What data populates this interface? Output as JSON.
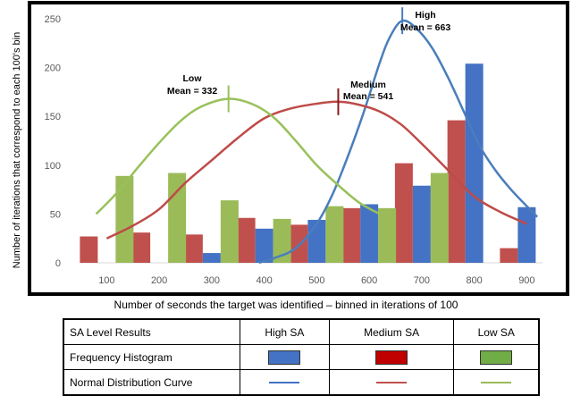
{
  "chart_data": {
    "type": "bar",
    "ylabel": "Number of iterations that correspond to each 100's bin",
    "xlabel": "Number of seconds the target was identified – binned in iterations of 100",
    "ylim": [
      0,
      250
    ],
    "xlim": [
      50,
      930
    ],
    "yticks": [
      0,
      50,
      100,
      150,
      200,
      250
    ],
    "categories": [
      "100",
      "200",
      "300",
      "400",
      "500",
      "600",
      "700",
      "800",
      "900"
    ],
    "series": [
      {
        "name": "High SA",
        "color": "#4472c4",
        "mean": 663,
        "mean_label": "Mean = 663",
        "label": "High",
        "values": [
          0,
          0,
          10,
          35,
          44,
          60,
          79,
          204,
          57
        ],
        "curve_x": [
          390,
          420,
          460,
          500,
          530,
          560,
          590,
          620,
          640,
          663,
          690,
          720,
          750,
          780,
          810,
          840,
          870,
          900,
          920
        ],
        "curve_y": [
          0,
          5,
          15,
          40,
          70,
          110,
          155,
          205,
          232,
          248,
          240,
          220,
          190,
          155,
          120,
          95,
          75,
          58,
          47
        ]
      },
      {
        "name": "Medium SA",
        "color": "#c0504d",
        "mean": 541,
        "mean_label": "Mean = 541",
        "label": "Medium",
        "values": [
          27,
          31,
          29,
          46,
          39,
          56,
          102,
          146,
          15
        ],
        "curve_x": [
          100,
          150,
          200,
          250,
          300,
          350,
          400,
          450,
          500,
          541,
          580,
          620,
          660,
          700,
          750,
          800,
          850,
          900
        ],
        "curve_y": [
          25,
          38,
          55,
          82,
          105,
          128,
          148,
          158,
          163,
          165,
          162,
          155,
          142,
          122,
          95,
          68,
          52,
          40
        ]
      },
      {
        "name": "Low SA",
        "color": "#9bbb59",
        "mean": 332,
        "mean_label": "Mean = 332",
        "label": "Low",
        "values": [
          89,
          92,
          64,
          45,
          58,
          56,
          92,
          0,
          0
        ],
        "curve_x": [
          80,
          120,
          160,
          200,
          240,
          280,
          332,
          380,
          420,
          460,
          500,
          540,
          580,
          620
        ],
        "curve_y": [
          50,
          72,
          98,
          123,
          145,
          160,
          168,
          162,
          148,
          125,
          100,
          80,
          62,
          50
        ]
      }
    ]
  },
  "legend": {
    "header": "SA Level Results",
    "col_high": "High SA",
    "col_medium": "Medium SA",
    "col_low": "Low SA",
    "row_hist": "Frequency Histogram",
    "row_curve": "Normal Distribution Curve",
    "colors": {
      "high": "#4472c4",
      "medium": "#c00000",
      "low": "#70ad47"
    }
  }
}
